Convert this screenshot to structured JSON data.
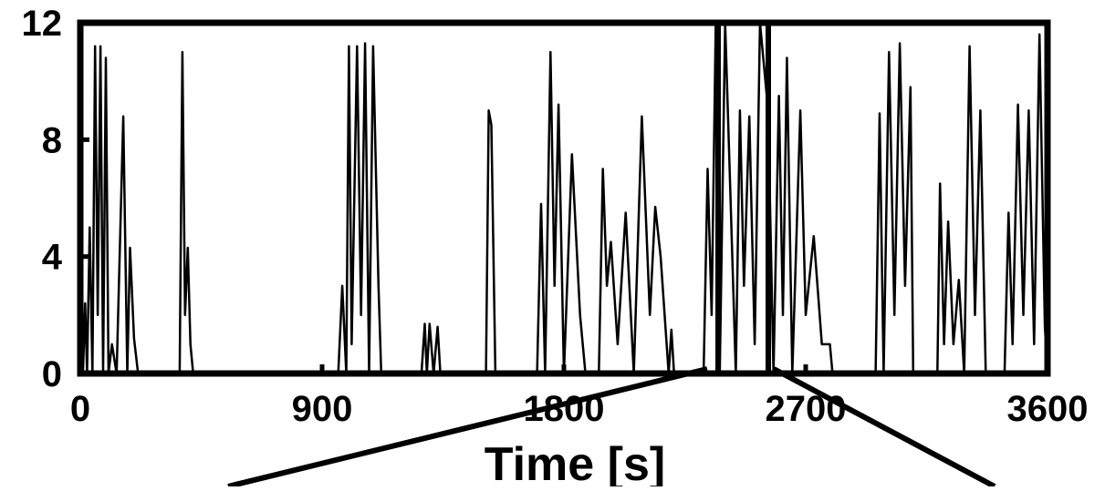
{
  "chart_data": {
    "type": "line",
    "xlabel": "Time [s]",
    "xlim": [
      0,
      3600
    ],
    "xticks": [
      0,
      900,
      1800,
      2700,
      3600
    ],
    "ylim": [
      0,
      12
    ],
    "yticks": [
      0,
      4,
      8,
      12
    ],
    "series": [
      {
        "name": null,
        "color": "#000000",
        "x": [
          0,
          5,
          10,
          18,
          25,
          35,
          45,
          55,
          65,
          75,
          85,
          95,
          105,
          118,
          135,
          160,
          175,
          185,
          200,
          215,
          370,
          380,
          390,
          400,
          410,
          420,
          960,
          975,
          990,
          1000,
          1010,
          1030,
          1045,
          1060,
          1075,
          1090,
          1110,
          1120,
          1270,
          1282,
          1290,
          1300,
          1315,
          1330,
          1340,
          1510,
          1520,
          1530,
          1545,
          1700,
          1715,
          1730,
          1750,
          1765,
          1780,
          1800,
          1830,
          1860,
          1880,
          1930,
          1945,
          1960,
          1975,
          2000,
          2030,
          2060,
          2090,
          2120,
          2140,
          2160,
          2190,
          2200,
          2210,
          2320,
          2335,
          2350,
          2365,
          2380,
          2400,
          2420,
          2440,
          2455,
          2470,
          2490,
          2510,
          2530,
          2560,
          2580,
          2600,
          2615,
          2630,
          2650,
          2680,
          2700,
          2730,
          2760,
          2790,
          2800,
          2960,
          2975,
          2990,
          3010,
          3030,
          3050,
          3070,
          3090,
          3100,
          3110,
          3190,
          3200,
          3215,
          3230,
          3250,
          3270,
          3290,
          3310,
          3330,
          3350,
          3370,
          3380,
          3440,
          3455,
          3470,
          3490,
          3510,
          3530,
          3550,
          3570,
          3590,
          3600
        ],
        "values": [
          0,
          5.3,
          0,
          2.4,
          0,
          5,
          0,
          11.2,
          2,
          11.2,
          0,
          10.8,
          0,
          1,
          0,
          8.8,
          0,
          4.3,
          1.2,
          0,
          0,
          11,
          2,
          4.3,
          1,
          0,
          0,
          3,
          0,
          11.2,
          1,
          11.2,
          2,
          11.3,
          0,
          11.2,
          3,
          0,
          0,
          1.7,
          0,
          1.7,
          0,
          1.6,
          0,
          0,
          9,
          8.5,
          0,
          0,
          5.8,
          0,
          11,
          3,
          9.2,
          0,
          7.5,
          2,
          0,
          0,
          7,
          3,
          4.5,
          1,
          5.5,
          0,
          8.8,
          2,
          5.7,
          4,
          0,
          1.5,
          0,
          0,
          7,
          2,
          12,
          0,
          12,
          6,
          0,
          9,
          3,
          8.8,
          1,
          12,
          9,
          0,
          9.5,
          2,
          10.8,
          0,
          9,
          2,
          4.7,
          1,
          1,
          0,
          0,
          8.9,
          0,
          11,
          2,
          11.3,
          3,
          9.8,
          0,
          0,
          0,
          6.5,
          1,
          5.2,
          1,
          3.2,
          0,
          11.2,
          2,
          9,
          0,
          0,
          0,
          5.5,
          1,
          9.2,
          2,
          9,
          1,
          11.6,
          1.6,
          0
        ]
      }
    ]
  }
}
